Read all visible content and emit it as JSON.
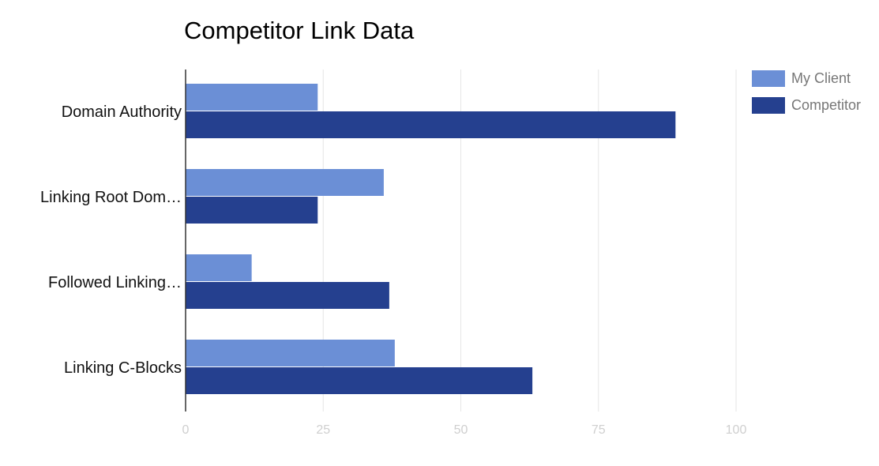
{
  "chart_data": {
    "type": "bar",
    "orientation": "horizontal",
    "title": "Competitor Link Data",
    "xlabel": "",
    "ylabel": "",
    "categories": [
      "Domain Authority",
      "Linking Root Dom…",
      "Followed Linking…",
      "Linking C-Blocks"
    ],
    "series": [
      {
        "name": "My Client",
        "values": [
          24,
          36,
          12,
          38
        ],
        "color": "#6b8fd6"
      },
      {
        "name": "Competitor",
        "values": [
          89,
          24,
          37,
          63
        ],
        "color": "#25408f"
      }
    ],
    "xlim": [
      0,
      100
    ],
    "ticks": [
      "0",
      "25",
      "50",
      "75",
      "100"
    ],
    "tick_values": [
      0,
      25,
      50,
      75,
      100
    ],
    "grid": true,
    "legend_position": "top-right"
  }
}
